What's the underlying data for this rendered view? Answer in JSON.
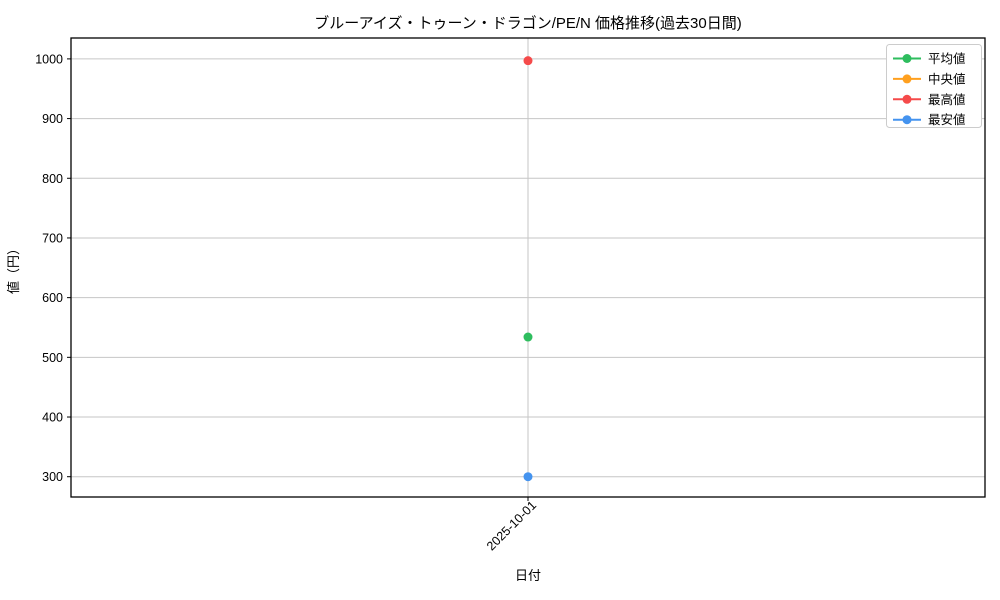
{
  "chart_data": {
    "type": "line",
    "title": "ブルーアイズ・トゥーン・ドラゴン/PE/N 価格推移(過去30日間)",
    "xlabel": "日付",
    "ylabel": "値（円）",
    "categories": [
      "2025-10-01"
    ],
    "series": [
      {
        "key": "average",
        "name": "平均値",
        "color": "#2ebd5e",
        "values": [
          534
        ]
      },
      {
        "key": "median",
        "name": "中央値",
        "color": "#ffa01f",
        "values": [
          null
        ]
      },
      {
        "key": "max",
        "name": "最高値",
        "color": "#f54a4a",
        "values": [
          997
        ]
      },
      {
        "key": "min",
        "name": "最安値",
        "color": "#4493ef",
        "values": [
          300
        ]
      }
    ],
    "yticks": [
      300,
      400,
      500,
      600,
      700,
      800,
      900,
      1000
    ],
    "ylim": [
      266,
      1035
    ],
    "grid": true,
    "grid_color": "#c6c6c6",
    "axis_color": "#000000",
    "legend_position": "upper-right",
    "legend_border_color": "#cccccc"
  }
}
